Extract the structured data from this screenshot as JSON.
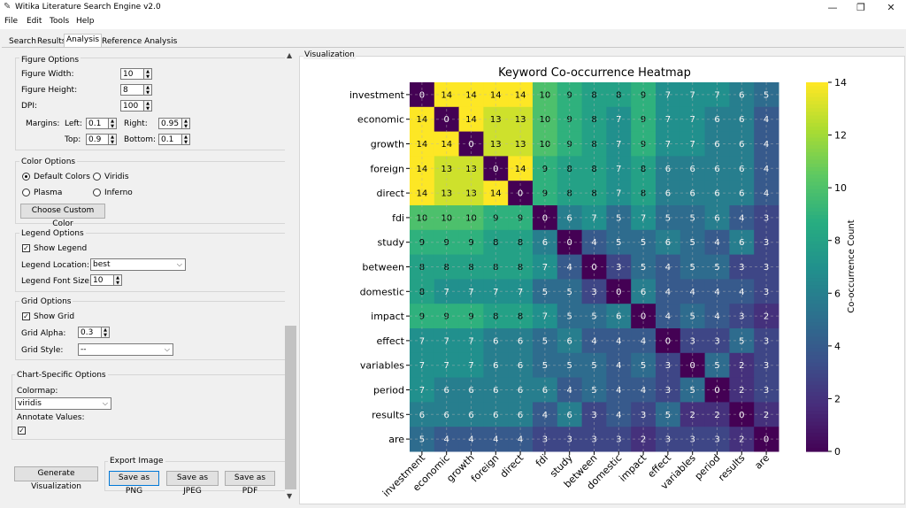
{
  "window": {
    "title": "Witika Literature Search Engine v2.0",
    "minimize": "—",
    "maximize": "❐",
    "close": "✕"
  },
  "menu": [
    "File",
    "Edit",
    "Tools",
    "Help"
  ],
  "tabs": [
    "Search",
    "Results",
    "Analysis",
    "Reference Analysis"
  ],
  "active_tab": "Analysis",
  "figure_options": {
    "title": "Figure Options",
    "width_label": "Figure Width:",
    "width_value": "10",
    "height_label": "Figure Height:",
    "height_value": "8",
    "dpi_label": "DPI:",
    "dpi_value": "100",
    "margins_label": "Margins:",
    "left_label": "Left:",
    "left_value": "0.1",
    "right_label": "Right:",
    "right_value": "0.95",
    "top_label": "Top:",
    "top_value": "0.9",
    "bottom_label": "Bottom:",
    "bottom_value": "0.1"
  },
  "color_options": {
    "title": "Color Options",
    "default_colors": "Default Colors",
    "viridis": "Viridis",
    "plasma": "Plasma",
    "inferno": "Inferno",
    "selected": "Default Colors",
    "custom_button": "Choose Custom Color"
  },
  "legend_options": {
    "title": "Legend Options",
    "show_legend": "Show Legend",
    "show_legend_checked": true,
    "location_label": "Legend Location:",
    "location_value": "best",
    "font_size_label": "Legend Font Size:",
    "font_size_value": "10"
  },
  "grid_options": {
    "title": "Grid Options",
    "show_grid": "Show Grid",
    "show_grid_checked": true,
    "alpha_label": "Grid Alpha:",
    "alpha_value": "0.3",
    "style_label": "Grid Style:",
    "style_value": "--"
  },
  "chart_options": {
    "title": "Chart-Specific Options",
    "colormap_label": "Colormap:",
    "colormap_value": "viridis",
    "annotate_label": "Annotate Values:",
    "annotate_checked": true
  },
  "actions": {
    "generate": "Generate Visualization",
    "export_title": "Export Image",
    "save_png": "Save as PNG",
    "save_jpeg": "Save as JPEG",
    "save_pdf": "Save as PDF"
  },
  "visualization_label": "Visualization",
  "chart_data": {
    "type": "heatmap",
    "title": "Keyword Co-occurrence Heatmap",
    "categories": [
      "investment",
      "economic",
      "growth",
      "foreign",
      "direct",
      "fdi",
      "study",
      "between",
      "domestic",
      "impact",
      "effect",
      "variables",
      "period",
      "results",
      "are"
    ],
    "matrix": [
      [
        0,
        14,
        14,
        14,
        14,
        10,
        9,
        8,
        8,
        9,
        7,
        7,
        7,
        6,
        5
      ],
      [
        14,
        0,
        14,
        13,
        13,
        10,
        9,
        8,
        7,
        9,
        7,
        7,
        6,
        6,
        4
      ],
      [
        14,
        14,
        0,
        13,
        13,
        10,
        9,
        8,
        7,
        9,
        7,
        7,
        6,
        6,
        4
      ],
      [
        14,
        13,
        13,
        0,
        14,
        9,
        8,
        8,
        7,
        8,
        6,
        6,
        6,
        6,
        4
      ],
      [
        14,
        13,
        13,
        14,
        0,
        9,
        8,
        8,
        7,
        8,
        6,
        6,
        6,
        6,
        4
      ],
      [
        10,
        10,
        10,
        9,
        9,
        0,
        6,
        7,
        5,
        7,
        5,
        5,
        6,
        4,
        3
      ],
      [
        9,
        9,
        9,
        8,
        8,
        6,
        0,
        4,
        5,
        5,
        6,
        5,
        4,
        6,
        3
      ],
      [
        8,
        8,
        8,
        8,
        8,
        7,
        4,
        0,
        3,
        5,
        4,
        5,
        5,
        3,
        3
      ],
      [
        8,
        7,
        7,
        7,
        7,
        5,
        5,
        3,
        0,
        6,
        4,
        4,
        4,
        4,
        3
      ],
      [
        9,
        9,
        9,
        8,
        8,
        7,
        5,
        5,
        6,
        0,
        4,
        5,
        4,
        3,
        2
      ],
      [
        7,
        7,
        7,
        6,
        6,
        5,
        6,
        4,
        4,
        4,
        0,
        3,
        3,
        5,
        3
      ],
      [
        7,
        7,
        7,
        6,
        6,
        5,
        5,
        5,
        4,
        5,
        3,
        0,
        5,
        2,
        3
      ],
      [
        7,
        6,
        6,
        6,
        6,
        6,
        4,
        5,
        4,
        4,
        3,
        5,
        0,
        2,
        3
      ],
      [
        6,
        6,
        6,
        6,
        6,
        4,
        6,
        3,
        4,
        3,
        5,
        2,
        2,
        0,
        2
      ],
      [
        5,
        4,
        4,
        4,
        4,
        3,
        3,
        3,
        3,
        2,
        3,
        3,
        3,
        2,
        0
      ]
    ],
    "colormap": "viridis",
    "vmin": 0,
    "vmax": 14,
    "colorbar_label": "Co-occurrence Count",
    "colorbar_ticks": [
      0,
      2,
      4,
      6,
      8,
      10,
      12,
      14
    ],
    "grid": true,
    "annotate": true
  }
}
